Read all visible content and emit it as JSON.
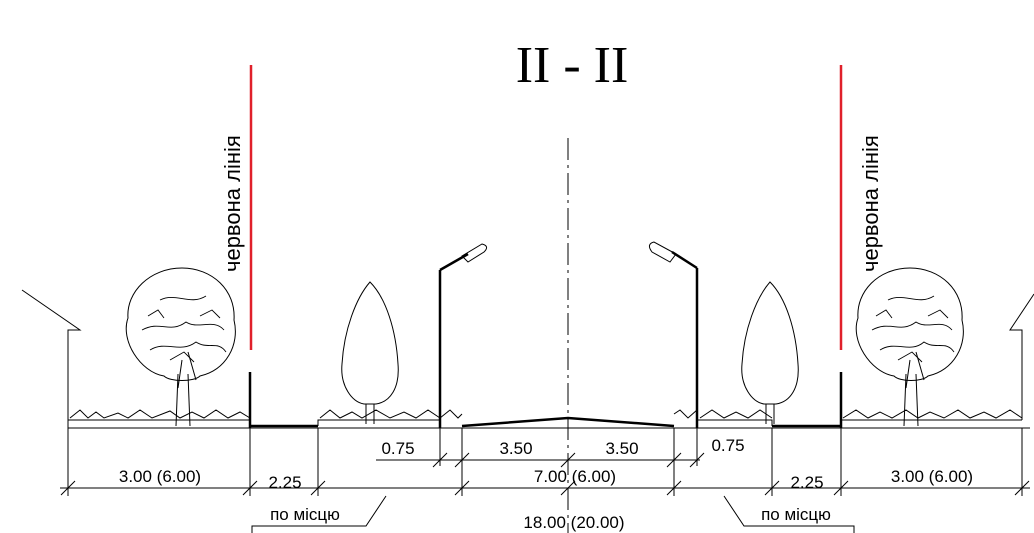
{
  "title": "II - II",
  "red_line_label": "червона лінія",
  "dimensions": {
    "sidewalk_left": "3.00 (6.00)",
    "sidewalk_right": "3.00 (6.00)",
    "green_left": "2.25",
    "green_right": "2.25",
    "shoulder_left": "0.75",
    "shoulder_right": "0.75",
    "lane_left": "3.50",
    "lane_right": "3.50",
    "carriageway": "7.00 (6.00)",
    "total": "18.00 (20.00)"
  },
  "notes": {
    "on_site_left": "по місцю",
    "on_site_right": "по місцю"
  },
  "colors": {
    "red_line": "#e0202a",
    "ink": "#000000"
  }
}
